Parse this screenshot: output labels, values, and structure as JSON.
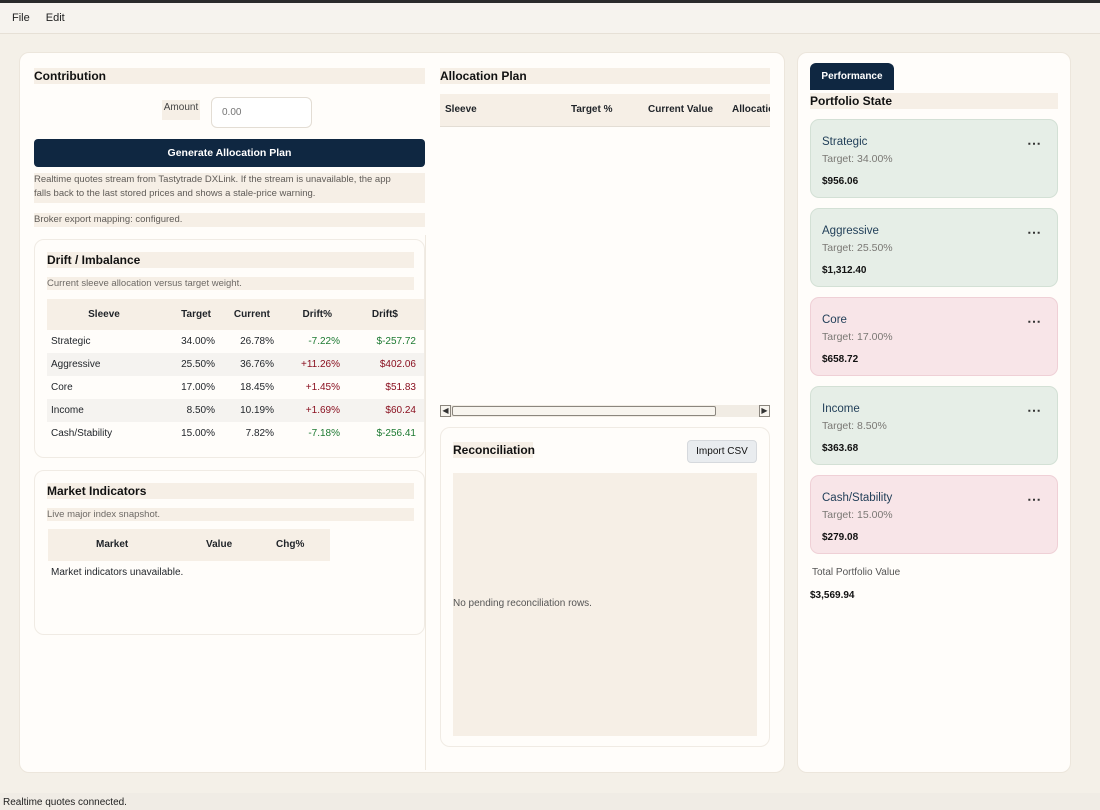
{
  "menu": {
    "file": "File",
    "edit": "Edit"
  },
  "contribution": {
    "title": "Contribution",
    "amount_label": "Amount",
    "amount_placeholder": "0.00",
    "generate_button": "Generate Allocation Plan",
    "info_line1": "Realtime quotes stream from Tastytrade DXLink. If the stream is unavailable, the app",
    "info_line2": "falls back to the last stored prices and shows a stale-price warning.",
    "broker_mapping": "Broker export mapping: configured."
  },
  "drift": {
    "title": "Drift / Imbalance",
    "subtitle": "Current sleeve allocation versus target weight.",
    "columns": [
      "Sleeve",
      "Target",
      "Current",
      "Drift%",
      "Drift$"
    ],
    "rows": [
      {
        "sleeve": "Strategic",
        "target": "34.00%",
        "current": "26.78%",
        "drift_pct": "-7.22%",
        "drift_usd": "$-257.72",
        "dir": "neg"
      },
      {
        "sleeve": "Aggressive",
        "target": "25.50%",
        "current": "36.76%",
        "drift_pct": "+11.26%",
        "drift_usd": "$402.06",
        "dir": "pos"
      },
      {
        "sleeve": "Core",
        "target": "17.00%",
        "current": "18.45%",
        "drift_pct": "+1.45%",
        "drift_usd": "$51.83",
        "dir": "pos"
      },
      {
        "sleeve": "Income",
        "target": "8.50%",
        "current": "10.19%",
        "drift_pct": "+1.69%",
        "drift_usd": "$60.24",
        "dir": "pos"
      },
      {
        "sleeve": "Cash/Stability",
        "target": "15.00%",
        "current": "7.82%",
        "drift_pct": "-7.18%",
        "drift_usd": "$-256.41",
        "dir": "neg"
      }
    ]
  },
  "market": {
    "title": "Market Indicators",
    "subtitle": "Live major index snapshot.",
    "columns": [
      "Market",
      "Value",
      "Chg%"
    ],
    "empty": "Market indicators unavailable."
  },
  "allocation": {
    "title": "Allocation Plan",
    "columns": [
      "Sleeve",
      "Target %",
      "Current Value",
      "Allocatio"
    ]
  },
  "reconciliation": {
    "title": "Reconciliation",
    "import_button": "Import CSV",
    "empty": "No pending reconciliation rows."
  },
  "portfolio": {
    "tab": "Performance",
    "title": "Portfolio State",
    "sleeves": [
      {
        "name": "Strategic",
        "target": "Target: 34.00%",
        "value": "$956.06",
        "tone": "green",
        "menu_icon": "more-dots-icon"
      },
      {
        "name": "Aggressive",
        "target": "Target: 25.50%",
        "value": "$1,312.40",
        "tone": "green",
        "menu_icon": "more-dots-icon"
      },
      {
        "name": "Core",
        "target": "Target: 17.00%",
        "value": "$658.72",
        "tone": "red",
        "menu_icon": "more-dots-icon"
      },
      {
        "name": "Income",
        "target": "Target: 8.50%",
        "value": "$363.68",
        "tone": "green",
        "menu_icon": "more-dots-icon"
      },
      {
        "name": "Cash/Stability",
        "target": "Target: 15.00%",
        "value": "$279.08",
        "tone": "red",
        "menu_icon": "more-dots-icon"
      }
    ],
    "total_label": "Total Portfolio Value",
    "total_value": "$3,569.94"
  },
  "status": {
    "text": "Realtime quotes connected."
  },
  "colors": {
    "accent": "#0f2741",
    "gain": "#1d7a32",
    "loss": "#8a1020",
    "card_green": "#e6eee7",
    "card_red": "#f8e5e8"
  }
}
